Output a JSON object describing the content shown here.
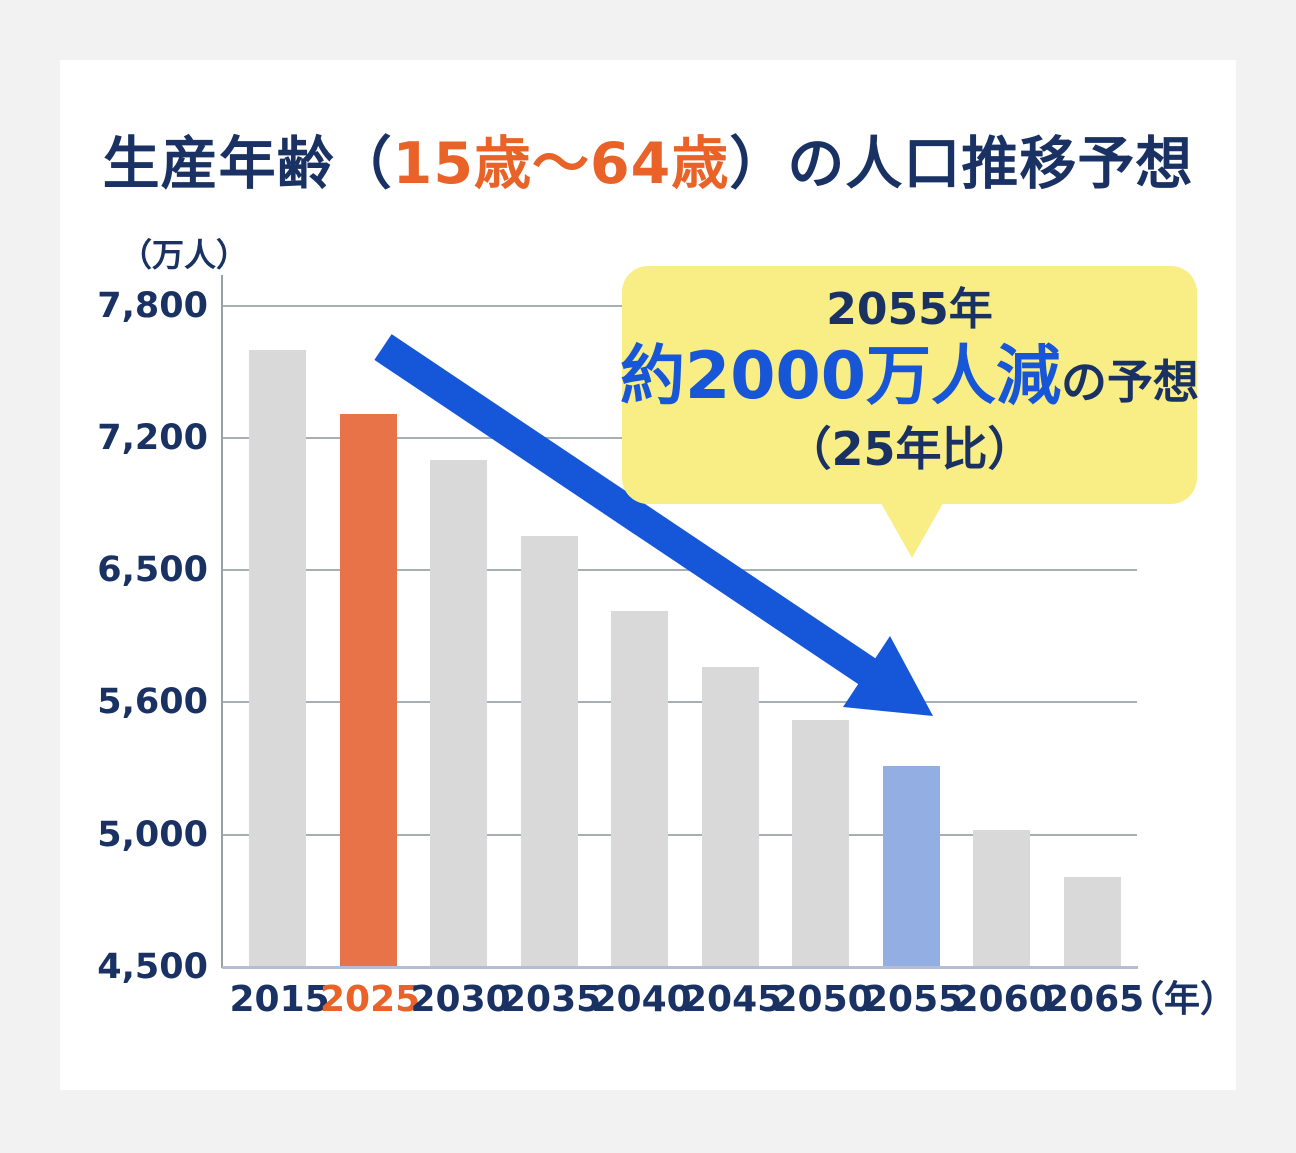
{
  "page": {
    "background": "#F2F2F2",
    "card_background": "#FFFFFF"
  },
  "title": {
    "prefix": "生産年齢（",
    "highlight": "15歳〜64歳",
    "suffix": "）の人口推移予想",
    "text_color": "#1A3263",
    "highlight_color": "#E96228"
  },
  "chart_data": {
    "type": "bar",
    "title": "生産年齢（15歳〜64歳）の人口推移予想",
    "y_axis_unit": "（万人）",
    "x_axis_unit": "（年）",
    "categories": [
      "2015",
      "2025",
      "2030",
      "2035",
      "2040",
      "2045",
      "2050",
      "2055",
      "2060",
      "2065"
    ],
    "values": [
      7600,
      7310,
      7080,
      6680,
      6220,
      5840,
      5520,
      5310,
      5020,
      4840
    ],
    "y_tick_labels": [
      "7,800",
      "7,200",
      "6,500",
      "5,600",
      "5,000",
      "4,500"
    ],
    "y_tick_values": [
      7800,
      7200,
      6500,
      5600,
      5000,
      4500
    ],
    "ylim": [
      4500,
      7800
    ],
    "y_axis_nonlinear_equal_spacing": true,
    "grid": true,
    "legend": "none",
    "bar_colors": {
      "default": "#D9D9D9",
      "2025": "#E87348",
      "2055": "#92AEE2"
    },
    "x_label_colors": {
      "default": "#1A3263",
      "2025": "#E96228"
    }
  },
  "callout": {
    "line1": "2055年",
    "line2_emphasis": "約2000万人減",
    "line2_rest": "の予想",
    "line3": "（25年比）",
    "background": "#F8EE85",
    "emphasis_color": "#1856D8",
    "text_color": "#1A3263"
  },
  "arrow": {
    "meaning": "declining-trend",
    "color": "#1656D8"
  }
}
